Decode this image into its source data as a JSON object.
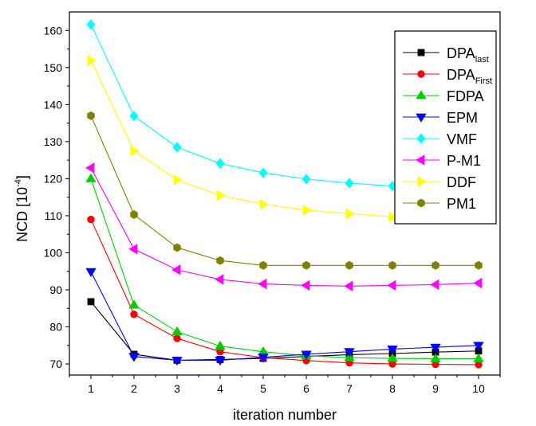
{
  "chart_data": {
    "type": "line",
    "title": "",
    "xlabel": "iteration number",
    "ylabel": {
      "base": "NCD [10",
      "exponent": "-4",
      "close": "]"
    },
    "x": [
      1,
      2,
      3,
      4,
      5,
      6,
      7,
      8,
      9,
      10
    ],
    "xlim": [
      0.5,
      10.5
    ],
    "ylim": [
      67,
      165
    ],
    "xticks": [
      1,
      2,
      3,
      4,
      5,
      6,
      7,
      8,
      9,
      10
    ],
    "yticks": [
      70,
      80,
      90,
      100,
      110,
      120,
      130,
      140,
      150,
      160
    ],
    "grid": false,
    "legend_position": "top-right",
    "series": [
      {
        "name": "DPA",
        "name_sub": "last",
        "marker": "square",
        "color": "#000000",
        "values": [
          86.8,
          72.6,
          71.0,
          71.2,
          71.5,
          72.0,
          72.5,
          72.8,
          73.2,
          73.5
        ]
      },
      {
        "name": "DPA",
        "name_sub": "First",
        "marker": "circle",
        "color": "#ff0000",
        "values": [
          109.0,
          83.4,
          76.9,
          73.3,
          71.7,
          70.9,
          70.3,
          70.0,
          69.9,
          69.8
        ]
      },
      {
        "name": "FDPA",
        "name_sub": "",
        "marker": "triangle-up",
        "color": "#00cc00",
        "values": [
          120.0,
          85.9,
          78.7,
          74.8,
          73.3,
          72.2,
          71.7,
          71.5,
          71.4,
          71.4
        ]
      },
      {
        "name": "EPM",
        "name_sub": "",
        "marker": "triangle-down",
        "color": "#0000ff",
        "values": [
          94.9,
          72.0,
          71.0,
          71.0,
          71.8,
          72.6,
          73.3,
          74.0,
          74.5,
          75.0
        ]
      },
      {
        "name": "VMF",
        "name_sub": "",
        "marker": "diamond",
        "color": "#00ffff",
        "values": [
          161.6,
          136.9,
          128.5,
          124.1,
          121.6,
          119.9,
          118.8,
          118.0,
          117.5,
          117.2
        ]
      },
      {
        "name": "P-M1",
        "name_sub": "",
        "marker": "triangle-left",
        "color": "#ff00ff",
        "values": [
          122.9,
          101.0,
          95.4,
          92.8,
          91.6,
          91.2,
          91.0,
          91.2,
          91.4,
          91.8
        ]
      },
      {
        "name": "DDF",
        "name_sub": "",
        "marker": "triangle-right",
        "color": "#ffff00",
        "values": [
          151.9,
          127.5,
          119.7,
          115.5,
          113.1,
          111.5,
          110.5,
          109.7,
          109.2,
          108.9
        ]
      },
      {
        "name": "PM1",
        "name_sub": "",
        "marker": "hexagon",
        "color": "#808000",
        "values": [
          137.0,
          110.3,
          101.4,
          97.9,
          96.6,
          96.6,
          96.6,
          96.6,
          96.6,
          96.6
        ]
      }
    ]
  }
}
